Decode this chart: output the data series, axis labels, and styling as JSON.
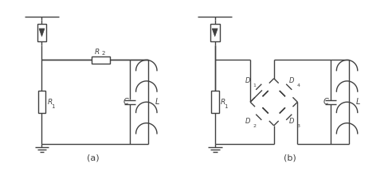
{
  "bg_color": "#ffffff",
  "line_color": "#404040",
  "lw": 1.0,
  "label_a": "(a)",
  "label_b": "(b)",
  "R1_label": "R",
  "R1_sub": "1",
  "R2_label": "R",
  "R2_sub": "2",
  "C_label": "C",
  "L_label": "L",
  "D1_label": "D",
  "D1_sub": "1",
  "D2_label": "D",
  "D2_sub": "2",
  "D3_label": "D",
  "D3_sub": "3",
  "D4_label": "D",
  "D4_sub": "4",
  "fig_w": 4.92,
  "fig_h": 2.2,
  "dpi": 100
}
